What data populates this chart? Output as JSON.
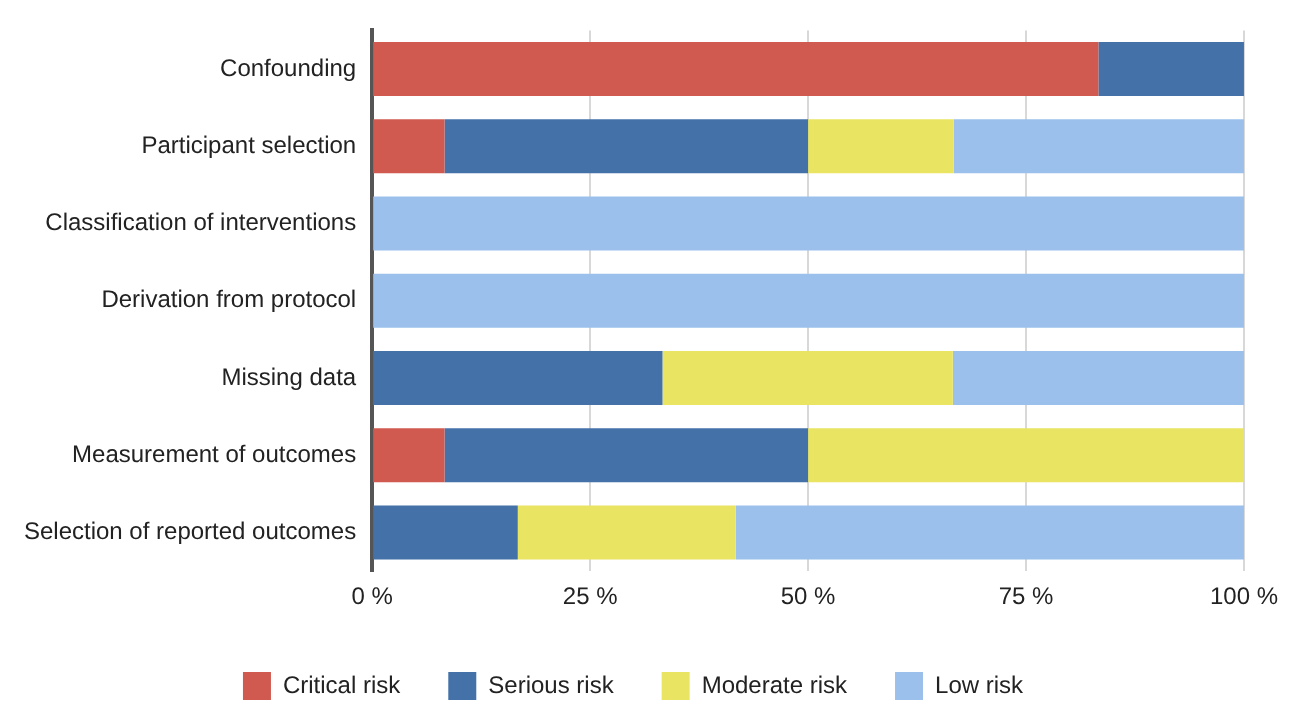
{
  "chart_data": {
    "type": "bar",
    "orientation": "horizontal",
    "stacked": true,
    "categories": [
      "Confounding",
      "Participant selection",
      "Classification of interventions",
      "Derivation from protocol",
      "Missing data",
      "Measurement of outcomes",
      "Selection of reported outcomes"
    ],
    "series": [
      {
        "name": "Critical risk",
        "color": "#d05a50",
        "values": [
          83.3,
          8.3,
          0,
          0,
          0,
          8.3,
          0
        ]
      },
      {
        "name": "Serious risk",
        "color": "#4371a8",
        "values": [
          16.7,
          41.7,
          0,
          0,
          33.3,
          41.7,
          16.7
        ]
      },
      {
        "name": "Moderate risk",
        "color": "#e9e462",
        "values": [
          0,
          16.7,
          0,
          0,
          33.3,
          50,
          25
        ]
      },
      {
        "name": "Low risk",
        "color": "#9bc0ec",
        "values": [
          0,
          33.3,
          100,
          100,
          33.4,
          0,
          58.3
        ]
      }
    ],
    "xlim": [
      0,
      100
    ],
    "xticks": [
      {
        "value": 0,
        "label": "0 %"
      },
      {
        "value": 25,
        "label": "25 %"
      },
      {
        "value": 50,
        "label": "50 %"
      },
      {
        "value": 75,
        "label": "75 %"
      },
      {
        "value": 100,
        "label": "100 %"
      }
    ],
    "grid": "x",
    "legend": "bottom"
  }
}
